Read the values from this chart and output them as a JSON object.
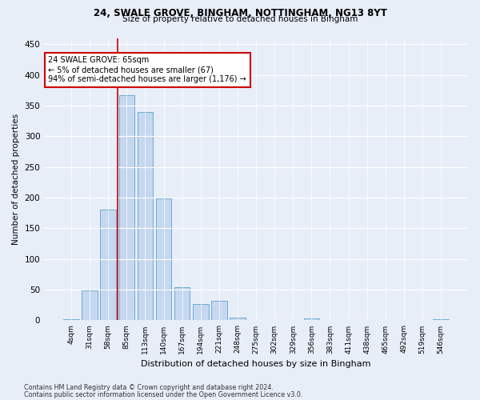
{
  "title1": "24, SWALE GROVE, BINGHAM, NOTTINGHAM, NG13 8YT",
  "title2": "Size of property relative to detached houses in Bingham",
  "xlabel": "Distribution of detached houses by size in Bingham",
  "ylabel": "Number of detached properties",
  "categories": [
    "4sqm",
    "31sqm",
    "58sqm",
    "85sqm",
    "113sqm",
    "140sqm",
    "167sqm",
    "194sqm",
    "221sqm",
    "248sqm",
    "275sqm",
    "302sqm",
    "329sqm",
    "356sqm",
    "383sqm",
    "411sqm",
    "438sqm",
    "465sqm",
    "492sqm",
    "519sqm",
    "546sqm"
  ],
  "values": [
    2,
    49,
    180,
    367,
    339,
    199,
    54,
    27,
    32,
    5,
    0,
    0,
    0,
    3,
    0,
    0,
    0,
    0,
    0,
    0,
    2
  ],
  "bar_color": "#c5d8f0",
  "bar_edge_color": "#6aaad4",
  "annotation_text": "24 SWALE GROVE: 65sqm\n← 5% of detached houses are smaller (67)\n94% of semi-detached houses are larger (1,176) →",
  "annotation_box_color": "#ffffff",
  "annotation_box_edge": "#cc0000",
  "footer1": "Contains HM Land Registry data © Crown copyright and database right 2024.",
  "footer2": "Contains public sector information licensed under the Open Government Licence v3.0.",
  "bg_color": "#e8eef8",
  "plot_bg_color": "#e8eef8",
  "ylim": [
    0,
    460
  ],
  "yticks": [
    0,
    50,
    100,
    150,
    200,
    250,
    300,
    350,
    400,
    450
  ]
}
